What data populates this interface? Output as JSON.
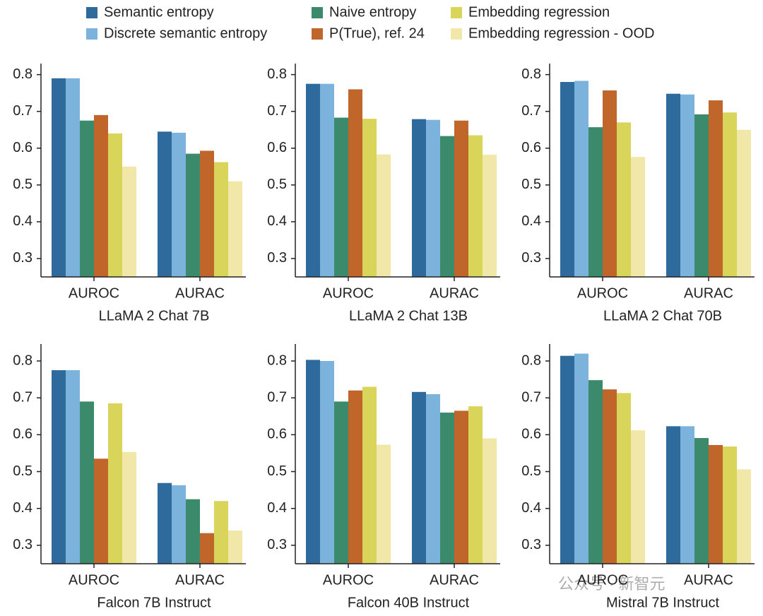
{
  "chart_data": [
    {
      "type": "bar",
      "xlabel": "LLaMA 2 Chat 7B",
      "categories": [
        "AUROC",
        "AURAC"
      ],
      "ylim": [
        0.25,
        0.83
      ],
      "yticks": [
        0.3,
        0.4,
        0.5,
        0.6,
        0.7,
        0.8
      ],
      "series": [
        {
          "name": "Semantic entropy",
          "color": "#2f6a9c",
          "values": [
            0.79,
            0.645
          ]
        },
        {
          "name": "Discrete semantic entropy",
          "color": "#7bb3dc",
          "values": [
            0.79,
            0.642
          ]
        },
        {
          "name": "Naive entropy",
          "color": "#3b8a6b",
          "values": [
            0.675,
            0.585
          ]
        },
        {
          "name": "P(True), ref. 24",
          "color": "#c0662a",
          "values": [
            0.69,
            0.593
          ]
        },
        {
          "name": "Embedding regression",
          "color": "#d9d45a",
          "values": [
            0.64,
            0.562
          ]
        },
        {
          "name": "Embedding regression - OOD",
          "color": "#f1e7a8",
          "values": [
            0.55,
            0.51
          ]
        }
      ]
    },
    {
      "type": "bar",
      "xlabel": "LLaMA 2 Chat 13B",
      "categories": [
        "AUROC",
        "AURAC"
      ],
      "ylim": [
        0.25,
        0.83
      ],
      "yticks": [
        0.3,
        0.4,
        0.5,
        0.6,
        0.7,
        0.8
      ],
      "series": [
        {
          "values": [
            0.775,
            0.679
          ]
        },
        {
          "values": [
            0.775,
            0.677
          ]
        },
        {
          "values": [
            0.683,
            0.633
          ]
        },
        {
          "values": [
            0.76,
            0.675
          ]
        },
        {
          "values": [
            0.68,
            0.635
          ]
        },
        {
          "values": [
            0.583,
            0.582
          ]
        }
      ]
    },
    {
      "type": "bar",
      "xlabel": "LLaMA 2 Chat 70B",
      "categories": [
        "AUROC",
        "AURAC"
      ],
      "ylim": [
        0.25,
        0.83
      ],
      "yticks": [
        0.3,
        0.4,
        0.5,
        0.6,
        0.7,
        0.8
      ],
      "series": [
        {
          "values": [
            0.78,
            0.748
          ]
        },
        {
          "values": [
            0.783,
            0.746
          ]
        },
        {
          "values": [
            0.657,
            0.692
          ]
        },
        {
          "values": [
            0.757,
            0.73
          ]
        },
        {
          "values": [
            0.67,
            0.697
          ]
        },
        {
          "values": [
            0.576,
            0.65
          ]
        }
      ]
    },
    {
      "type": "bar",
      "xlabel": "Falcon 7B Instruct",
      "categories": [
        "AUROC",
        "AURAC"
      ],
      "ylim": [
        0.25,
        0.846
      ],
      "yticks": [
        0.3,
        0.4,
        0.5,
        0.6,
        0.7,
        0.8
      ],
      "series": [
        {
          "values": [
            0.775,
            0.469
          ]
        },
        {
          "values": [
            0.775,
            0.463
          ]
        },
        {
          "values": [
            0.69,
            0.425
          ]
        },
        {
          "values": [
            0.535,
            0.333
          ]
        },
        {
          "values": [
            0.685,
            0.42
          ]
        },
        {
          "values": [
            0.553,
            0.34
          ]
        }
      ]
    },
    {
      "type": "bar",
      "xlabel": "Falcon 40B Instruct",
      "categories": [
        "AUROC",
        "AURAC"
      ],
      "ylim": [
        0.25,
        0.846
      ],
      "yticks": [
        0.3,
        0.4,
        0.5,
        0.6,
        0.7,
        0.8
      ],
      "series": [
        {
          "values": [
            0.803,
            0.716
          ]
        },
        {
          "values": [
            0.8,
            0.71
          ]
        },
        {
          "values": [
            0.69,
            0.66
          ]
        },
        {
          "values": [
            0.72,
            0.665
          ]
        },
        {
          "values": [
            0.73,
            0.677
          ]
        },
        {
          "values": [
            0.573,
            0.59
          ]
        }
      ]
    },
    {
      "type": "bar",
      "xlabel": "Mistral 7B Instruct",
      "categories": [
        "AUROC",
        "AURAC"
      ],
      "ylim": [
        0.25,
        0.846
      ],
      "yticks": [
        0.3,
        0.4,
        0.5,
        0.6,
        0.7,
        0.8
      ],
      "series": [
        {
          "values": [
            0.814,
            0.623
          ]
        },
        {
          "values": [
            0.82,
            0.623
          ]
        },
        {
          "values": [
            0.748,
            0.591
          ]
        },
        {
          "values": [
            0.723,
            0.572
          ]
        },
        {
          "values": [
            0.713,
            0.568
          ]
        },
        {
          "values": [
            0.612,
            0.506
          ]
        }
      ]
    }
  ],
  "watermark": "公众号 · 新智元"
}
